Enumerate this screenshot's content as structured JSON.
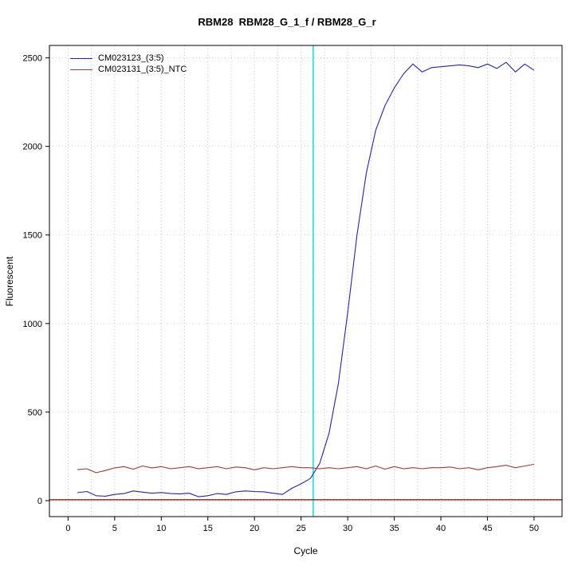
{
  "title": "RBM28  RBM28_G_1_f / RBM28_G_r",
  "xlabel": "Cycle",
  "ylabel": "Fluorescent",
  "legend": {
    "items": [
      {
        "label": "CM023123_(3:5)",
        "color": "#2626a0"
      },
      {
        "label": "CM023131_(3:5)_NTC",
        "color": "#9c3b33"
      }
    ]
  },
  "chart_data": {
    "type": "line",
    "title": "RBM28  RBM28_G_1_f / RBM28_G_r",
    "xlabel": "Cycle",
    "ylabel": "Fluorescent",
    "xlim": [
      -2,
      53
    ],
    "ylim": [
      -90,
      2570
    ],
    "x_ticks": [
      0,
      5,
      10,
      15,
      20,
      25,
      30,
      35,
      40,
      45,
      50
    ],
    "y_ticks": [
      0,
      500,
      1000,
      1500,
      2000,
      2500
    ],
    "grid": true,
    "x_grid_step": 2.5,
    "legend_position": "top-left",
    "x": [
      1,
      2,
      3,
      4,
      5,
      6,
      7,
      8,
      9,
      10,
      11,
      12,
      13,
      14,
      15,
      16,
      17,
      18,
      19,
      20,
      21,
      22,
      23,
      24,
      25,
      26,
      27,
      28,
      29,
      30,
      31,
      32,
      33,
      34,
      35,
      36,
      37,
      38,
      39,
      40,
      41,
      42,
      43,
      44,
      45,
      46,
      47,
      48,
      49,
      50
    ],
    "series": [
      {
        "name": "CM023123_(3:5)",
        "color": "#2626a0",
        "values": [
          45,
          52,
          28,
          25,
          35,
          40,
          55,
          48,
          42,
          46,
          40,
          38,
          42,
          22,
          28,
          40,
          35,
          50,
          55,
          52,
          50,
          42,
          35,
          70,
          95,
          125,
          210,
          380,
          660,
          1060,
          1500,
          1850,
          2090,
          2230,
          2330,
          2410,
          2465,
          2420,
          2445,
          2450,
          2455,
          2460,
          2455,
          2445,
          2465,
          2440,
          2475,
          2420,
          2465,
          2430
        ]
      },
      {
        "name": "CM023131_(3:5)_NTC",
        "color": "#9c3b33",
        "values": [
          175,
          180,
          158,
          170,
          185,
          192,
          178,
          196,
          185,
          192,
          180,
          186,
          192,
          180,
          186,
          192,
          180,
          190,
          186,
          174,
          186,
          180,
          186,
          192,
          186,
          186,
          180,
          186,
          180,
          186,
          192,
          180,
          196,
          178,
          192,
          180,
          186,
          180,
          186,
          186,
          190,
          180,
          186,
          174,
          186,
          192,
          200,
          186,
          196,
          205
        ]
      }
    ],
    "annotations": {
      "threshold_line_y": 5,
      "threshold_line_color": "#8b0000",
      "ct_line_x": 26.3,
      "ct_line_color": "#00e0e0"
    }
  }
}
